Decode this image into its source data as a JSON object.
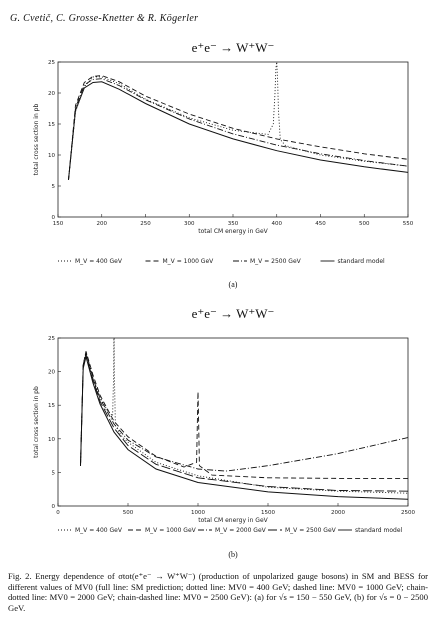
{
  "header": {
    "authors": "G. Cvetič, C. Grosse-Knetter & R. Kögerler"
  },
  "chart_data": [
    {
      "type": "line",
      "panel": "(a)",
      "title": "e⁺e⁻  →  W⁺W⁻",
      "xlabel": "total CM energy in GeV",
      "ylabel": "total cross section in pb",
      "xlim": [
        150,
        550
      ],
      "ylim": [
        0,
        25
      ],
      "xticks": [
        150,
        200,
        250,
        300,
        350,
        400,
        450,
        500,
        550
      ],
      "yticks": [
        0,
        5,
        10,
        15,
        20,
        25
      ],
      "series": [
        {
          "name": "M_V = 400 GeV",
          "style": "dotted",
          "x": [
            162,
            170,
            180,
            190,
            200,
            220,
            250,
            300,
            350,
            390,
            396,
            398,
            399,
            400,
            401,
            402,
            404,
            410,
            450,
            500,
            550
          ],
          "y": [
            6,
            17,
            21,
            22.6,
            22.6,
            21.5,
            19,
            16,
            14,
            13.3,
            15,
            20,
            24,
            25,
            22,
            17,
            12.5,
            11.5,
            10,
            9,
            8.2
          ]
        },
        {
          "name": "M_V = 1000 GeV",
          "style": "dashed",
          "x": [
            162,
            170,
            180,
            190,
            200,
            220,
            250,
            300,
            350,
            400,
            450,
            500,
            550
          ],
          "y": [
            6,
            18,
            21.7,
            22.7,
            22.8,
            21.8,
            19.5,
            16.6,
            14.3,
            12.6,
            11.3,
            10.2,
            9.3
          ]
        },
        {
          "name": "M_V = 2500 GeV",
          "style": "dash-dot",
          "x": [
            162,
            170,
            180,
            190,
            200,
            220,
            250,
            300,
            350,
            400,
            450,
            500,
            550
          ],
          "y": [
            6,
            17.6,
            21.3,
            22.2,
            22.3,
            21.2,
            18.9,
            15.8,
            13.4,
            11.6,
            10.2,
            9.1,
            8.2
          ]
        },
        {
          "name": "standard model",
          "style": "solid",
          "x": [
            162,
            170,
            180,
            190,
            200,
            220,
            250,
            300,
            350,
            400,
            450,
            500,
            550
          ],
          "y": [
            6,
            17.2,
            20.8,
            21.7,
            21.8,
            20.6,
            18.3,
            15,
            12.6,
            10.7,
            9.2,
            8.1,
            7.2
          ]
        }
      ],
      "legend": [
        "M_V = 400 GeV",
        "M_V = 1000 GeV",
        "M_V = 2500 GeV",
        "standard model"
      ]
    },
    {
      "type": "line",
      "panel": "(b)",
      "title": "e⁺e⁻  →  W⁺W⁻",
      "xlabel": "total CM energy in GeV",
      "ylabel": "total cross section in pb",
      "xlim": [
        0,
        2500
      ],
      "ylim": [
        0,
        25
      ],
      "xticks": [
        0,
        500,
        1000,
        1500,
        2000,
        2500
      ],
      "yticks": [
        0,
        5,
        10,
        15,
        20,
        25
      ],
      "series": [
        {
          "name": "M_V = 400 GeV",
          "style": "dotted",
          "x": [
            161,
            180,
            200,
            250,
            300,
            350,
            390,
            398,
            399,
            400,
            401,
            402,
            410,
            450,
            500,
            700,
            1000,
            1500,
            2000,
            2500
          ],
          "y": [
            6,
            21,
            23,
            19,
            16.2,
            14.3,
            13.4,
            20,
            25,
            25,
            25,
            20,
            12,
            10.5,
            9.5,
            6.5,
            4.5,
            2.8,
            2.2,
            1.9
          ]
        },
        {
          "name": "M_V = 1000 GeV",
          "style": "dashed",
          "x": [
            161,
            180,
            200,
            250,
            300,
            400,
            500,
            700,
            900,
            990,
            995,
            1000,
            1005,
            1010,
            1100,
            1500,
            2000,
            2500
          ],
          "y": [
            6,
            21,
            23,
            19.5,
            16.5,
            12.6,
            10.3,
            7.4,
            5.8,
            6.5,
            12,
            17,
            12,
            6,
            4.6,
            4.2,
            4.1,
            4.1
          ]
        },
        {
          "name": "M_V = 2000 GeV",
          "style": "dash-dot",
          "x": [
            161,
            180,
            200,
            250,
            300,
            400,
            500,
            700,
            1000,
            1200,
            1500,
            2000,
            2500
          ],
          "y": [
            6,
            21,
            22.8,
            19,
            16,
            12.2,
            9.8,
            7.3,
            5.5,
            5.2,
            6,
            7.8,
            10.2
          ]
        },
        {
          "name": "M_V = 2500 GeV",
          "style": "long-dash",
          "x": [
            161,
            180,
            200,
            250,
            300,
            400,
            500,
            700,
            1000,
            1500,
            2000,
            2500
          ],
          "y": [
            6,
            20.8,
            22.5,
            18.7,
            15.6,
            11.6,
            9,
            6.2,
            4.2,
            2.9,
            2.3,
            2.2
          ]
        },
        {
          "name": "standard model",
          "style": "solid",
          "x": [
            161,
            180,
            200,
            250,
            300,
            400,
            500,
            700,
            1000,
            1500,
            2000,
            2500
          ],
          "y": [
            6,
            20.5,
            22.2,
            18.3,
            15.2,
            11,
            8.4,
            5.5,
            3.5,
            2.1,
            1.4,
            1
          ]
        }
      ],
      "legend": [
        "M_V = 400 GeV",
        "M_V = 1000 GeV",
        "M_V = 2000 GeV",
        "M_V = 2500 GeV",
        "standard model"
      ]
    }
  ],
  "caption": {
    "fig": "Fig. 2.",
    "text": "Energy dependence of σtot(e⁺e⁻ → W⁺W⁻) (production of unpolarized gauge bosons) in SM and BESS for different values of MV0 (full line: SM prediction; dotted line: MV0 = 400 GeV; dashed line: MV0 = 1000 GeV; chain-dotted line: MV0 = 2000 GeV; chain-dashed line: MV0 = 2500 GeV): (a) for √s = 150 − 550 GeV, (b) for √s = 0 − 2500 GeV."
  }
}
